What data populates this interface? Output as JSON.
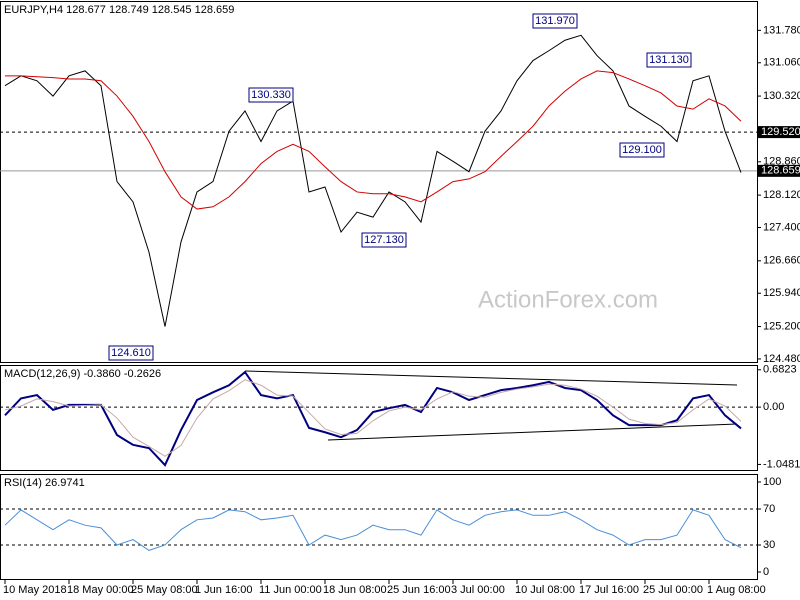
{
  "chart_data": [
    {
      "type": "line",
      "title": "EURJPY,H4  128.677 128.749 128.545 128.659",
      "watermark": "ActionForex.com",
      "ylim": [
        124.39,
        132.41
      ],
      "yticks": [
        {
          "value": 131.78,
          "label": "131.780"
        },
        {
          "value": 131.06,
          "label": "131.060"
        },
        {
          "value": 130.32,
          "label": "130.320"
        },
        {
          "value": 128.86,
          "label": "128.860"
        },
        {
          "value": 128.12,
          "label": "128.120"
        },
        {
          "value": 127.4,
          "label": "127.400"
        },
        {
          "value": 126.66,
          "label": "126.660"
        },
        {
          "value": 125.94,
          "label": "125.940"
        },
        {
          "value": 125.2,
          "label": "125.200"
        },
        {
          "value": 124.48,
          "label": "124.480"
        }
      ],
      "levels": [
        {
          "value": 129.52,
          "label": "129.520",
          "dashed": true
        },
        {
          "value": 128.659,
          "label": "128.659",
          "dashed": false
        }
      ],
      "annotations": [
        {
          "value": 131.97,
          "label": "131.970"
        },
        {
          "value": 131.13,
          "label": "131.130"
        },
        {
          "value": 130.33,
          "label": "130.330"
        },
        {
          "value": 129.1,
          "label": "129.100"
        },
        {
          "value": 127.13,
          "label": "127.130"
        },
        {
          "value": 124.61,
          "label": "124.610"
        }
      ],
      "series": [
        {
          "color": "#000000",
          "values": [
            130.55,
            130.77,
            130.66,
            130.32,
            130.77,
            130.88,
            130.55,
            128.42,
            127.97,
            126.85,
            125.2,
            127.08,
            128.19,
            128.42,
            129.54,
            129.99,
            129.31,
            129.99,
            130.21,
            128.19,
            128.3,
            127.3,
            127.74,
            127.63,
            128.19,
            127.97,
            127.52,
            129.09,
            128.87,
            128.64,
            129.54,
            129.99,
            130.66,
            131.11,
            131.33,
            131.56,
            131.67,
            131.22,
            130.88,
            130.1,
            129.87,
            129.65,
            129.31,
            130.66,
            130.77,
            129.54,
            128.62
          ]
        },
        {
          "color": "#d40000",
          "values": [
            130.77,
            130.77,
            130.75,
            130.73,
            130.7,
            130.7,
            130.66,
            130.32,
            129.87,
            129.31,
            128.64,
            128.08,
            127.81,
            127.86,
            128.08,
            128.42,
            128.82,
            129.09,
            129.25,
            129.09,
            128.75,
            128.42,
            128.19,
            128.15,
            128.15,
            128.08,
            127.97,
            128.19,
            128.42,
            128.48,
            128.64,
            128.98,
            129.31,
            129.65,
            130.1,
            130.43,
            130.7,
            130.88,
            130.84,
            130.7,
            130.55,
            130.39,
            130.1,
            130.03,
            130.26,
            130.1,
            129.76
          ]
        }
      ]
    },
    {
      "type": "line",
      "title": "MACD(12,26,9) -0.3860 -0.2626",
      "ylim": [
        -1.15,
        0.77
      ],
      "yticks": [
        0.6823,
        {
          "value": 0,
          "label": "0.00"
        },
        -1.0481
      ],
      "levels": [
        0
      ],
      "series": [
        {
          "color": "#000080",
          "width": 2,
          "values": [
            -0.15,
            0.16,
            0.22,
            -0.05,
            0.04,
            0.04,
            0.04,
            -0.51,
            -0.69,
            -0.75,
            -1.06,
            -0.42,
            0.13,
            0.27,
            0.4,
            0.64,
            0.22,
            0.16,
            0.22,
            -0.38,
            -0.46,
            -0.55,
            -0.42,
            -0.09,
            -0.02,
            0.04,
            -0.09,
            0.35,
            0.27,
            0.13,
            0.22,
            0.31,
            0.35,
            0.4,
            0.46,
            0.35,
            0.31,
            0.13,
            -0.15,
            -0.33,
            -0.33,
            -0.33,
            -0.24,
            0.16,
            0.22,
            -0.15,
            -0.39
          ]
        },
        {
          "color": "#c8a8a8",
          "width": 1,
          "values": [
            -0.05,
            0.02,
            0.15,
            0.1,
            0.02,
            0.03,
            0.04,
            -0.2,
            -0.55,
            -0.72,
            -0.9,
            -0.7,
            -0.2,
            0.15,
            0.3,
            0.5,
            0.4,
            0.22,
            0.2,
            -0.1,
            -0.4,
            -0.5,
            -0.48,
            -0.25,
            -0.07,
            0,
            -0.05,
            0.15,
            0.28,
            0.2,
            0.18,
            0.27,
            0.33,
            0.37,
            0.42,
            0.4,
            0.33,
            0.2,
            0,
            -0.22,
            -0.3,
            -0.32,
            -0.28,
            -0.05,
            0.15,
            0.02,
            -0.26
          ]
        }
      ]
    },
    {
      "type": "line",
      "title": "RSI(14) 26.9741",
      "ylim": [
        -8.9,
        108.9
      ],
      "yticks": [
        100,
        70,
        30,
        0
      ],
      "levels": [
        70,
        30
      ],
      "categories": [
        "10 May 2018",
        null,
        null,
        null,
        "18 May 00:00",
        null,
        null,
        null,
        "25 May 08:00",
        null,
        null,
        null,
        "1 Jun 16:00",
        null,
        null,
        null,
        "11 Jun 00:00",
        null,
        null,
        null,
        "18 Jun 08:00",
        null,
        null,
        null,
        "25 Jun 16:00",
        null,
        null,
        null,
        "3 Jul 00:00",
        null,
        null,
        null,
        "10 Jul 08:00",
        null,
        null,
        null,
        "17 Jul 16:00",
        null,
        null,
        null,
        "25 Jul 00:00",
        null,
        null,
        null,
        "1 Aug 08:00",
        null,
        null
      ],
      "series": [
        {
          "color": "#4a8fd8",
          "width": 1,
          "values": [
            52,
            69,
            58,
            47,
            58,
            52,
            49,
            30,
            36,
            24,
            30,
            47,
            58,
            60,
            69,
            67,
            58,
            60,
            63,
            30,
            41,
            36,
            41,
            52,
            47,
            47,
            41,
            69,
            58,
            52,
            63,
            67,
            69,
            63,
            63,
            67,
            58,
            47,
            41,
            30,
            36,
            36,
            41,
            69,
            63,
            36,
            27
          ]
        }
      ]
    }
  ]
}
